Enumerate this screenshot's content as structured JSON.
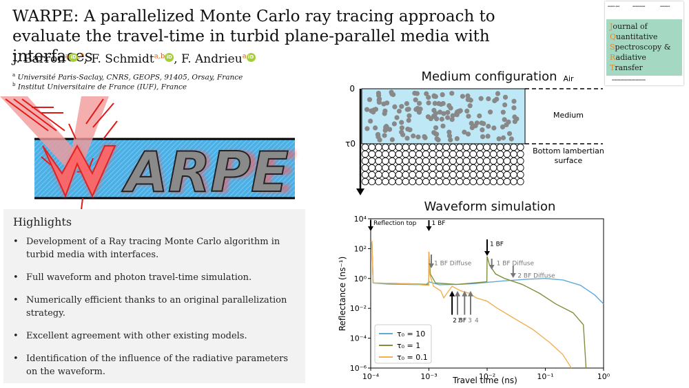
{
  "title": "WARPE: A parallelized Monte Carlo ray tracing approach to evaluate the travel-time in turbid plane-parallel media with interfaces",
  "authors": [
    {
      "name": "J. Barron",
      "aff": "a",
      "extra": ",*"
    },
    {
      "name": "F. Schmidt",
      "aff": "a,b",
      "extra": ""
    },
    {
      "name": "F. Andrieu",
      "aff": "a",
      "extra": ""
    }
  ],
  "orcid_label": "iD",
  "affiliations": [
    {
      "mark": "a",
      "text": "Université Paris-Saclay, CNRS, GEOPS, 91405, Orsay, France"
    },
    {
      "mark": "b",
      "text": "Institut Universitaire de France (IUF), France"
    }
  ],
  "journal": {
    "lines": [
      {
        "initial": "J",
        "rest": "ournal of"
      },
      {
        "initial": "Q",
        "rest": "uantitative"
      },
      {
        "initial": "S",
        "rest": "pectroscopy &"
      },
      {
        "initial": "R",
        "rest": "adiative"
      },
      {
        "initial": "T",
        "rest": "ransfer"
      }
    ]
  },
  "logo_text": "WARPE",
  "highlights": {
    "heading": "Highlights",
    "bullet": "•",
    "items": [
      "Development of a Ray tracing Monte Carlo algorithm in turbid media with interfaces.",
      "Full waveform and photon travel-time simulation.",
      "Numerically efficient thanks to an original parallelization strategy.",
      "Excellent agreement with other existing models.",
      "Identification of the influence of the radiative parameters on the waveform."
    ]
  },
  "medium": {
    "title": "Medium configuration",
    "top_label": "0",
    "bottom_label": "τ0",
    "air": "Air",
    "medium": "Medium",
    "surface_line1": "Bottom lambertian",
    "surface_line2": "surface",
    "colors": {
      "medium": "#bfe8f7",
      "particle": "#888888"
    }
  },
  "chart_data": {
    "type": "line",
    "title": "Waveform simulation",
    "xlabel": "Travel time (ns)",
    "ylabel": "Reflectance (ns⁻¹)",
    "x_scale": "log",
    "y_scale": "log",
    "xlim": [
      0.0001,
      1
    ],
    "ylim": [
      1e-06,
      10000
    ],
    "x_ticks": [
      "10⁻⁴",
      "10⁻³",
      "10⁻²",
      "10⁻¹",
      "10⁰"
    ],
    "y_ticks": [
      "10⁴",
      "10²",
      "10⁰",
      "10⁻²",
      "10⁻⁴",
      "10⁻⁶"
    ],
    "legend_position": "bottom-left",
    "series": [
      {
        "name": "τ₀ = 10",
        "color": "#5fa8d8",
        "points": [
          [
            0.0001,
            300
          ],
          [
            0.000105,
            300
          ],
          [
            0.00011,
            0.5
          ],
          [
            0.0002,
            0.42
          ],
          [
            0.0004,
            0.4
          ],
          [
            0.0009,
            0.38
          ],
          [
            0.001,
            0.6
          ],
          [
            0.0015,
            0.38
          ],
          [
            0.003,
            0.4
          ],
          [
            0.006,
            0.45
          ],
          [
            0.01,
            0.55
          ],
          [
            0.02,
            0.7
          ],
          [
            0.05,
            0.9
          ],
          [
            0.1,
            1.0
          ],
          [
            0.2,
            0.8
          ],
          [
            0.4,
            0.35
          ],
          [
            0.7,
            0.08
          ],
          [
            1,
            0.02
          ]
        ]
      },
      {
        "name": "τ₀ = 1",
        "color": "#7f8f3a",
        "points": [
          [
            0.0001,
            300
          ],
          [
            0.000105,
            300
          ],
          [
            0.00011,
            0.5
          ],
          [
            0.0004,
            0.45
          ],
          [
            0.00099,
            0.4
          ],
          [
            0.001,
            60
          ],
          [
            0.00106,
            2
          ],
          [
            0.0013,
            0.5
          ],
          [
            0.003,
            0.4
          ],
          [
            0.0099,
            0.6
          ],
          [
            0.01,
            30
          ],
          [
            0.011,
            8
          ],
          [
            0.014,
            2
          ],
          [
            0.02,
            1
          ],
          [
            0.04,
            0.4
          ],
          [
            0.08,
            0.1
          ],
          [
            0.15,
            0.02
          ],
          [
            0.3,
            0.005
          ],
          [
            0.45,
            0.0008
          ],
          [
            0.5,
            1e-06
          ]
        ]
      },
      {
        "name": "τ₀ = 0.1",
        "color": "#f0b050",
        "points": [
          [
            0.0001,
            300
          ],
          [
            0.000105,
            300
          ],
          [
            0.00011,
            0.5
          ],
          [
            0.0004,
            0.45
          ],
          [
            0.00099,
            0.35
          ],
          [
            0.001,
            60
          ],
          [
            0.00103,
            2
          ],
          [
            0.0012,
            0.3
          ],
          [
            0.0016,
            0.15
          ],
          [
            0.0018,
            0.05
          ],
          [
            0.002,
            0.09
          ],
          [
            0.0025,
            0.3
          ],
          [
            0.0035,
            0.15
          ],
          [
            0.005,
            0.1
          ],
          [
            0.0065,
            0.05
          ],
          [
            0.01,
            0.03
          ],
          [
            0.015,
            0.01
          ],
          [
            0.03,
            0.002
          ],
          [
            0.06,
            0.0004
          ],
          [
            0.12,
            5e-05
          ],
          [
            0.2,
            8e-06
          ],
          [
            0.28,
            1e-06
          ]
        ]
      }
    ],
    "annotations": [
      {
        "text": "Reflection top",
        "x": 0.0001,
        "y": 10000,
        "color": "#000000"
      },
      {
        "text": "1 BF",
        "x": 0.001,
        "y": 10000,
        "color": "#000000"
      },
      {
        "text": "1 BF Diffuse",
        "x": 0.0011,
        "y": 20,
        "color": "#777777"
      },
      {
        "text": "1 BF",
        "x": 0.01,
        "y": 400,
        "color": "#000000"
      },
      {
        "text": "1 BF Diffuse",
        "x": 0.013,
        "y": 20,
        "color": "#777777"
      },
      {
        "text": "2 BF Diffuse",
        "x": 0.03,
        "y": 3,
        "color": "#777777"
      },
      {
        "text": "2 BF",
        "x": 0.0023,
        "y": 0.003,
        "color": "#000000"
      },
      {
        "text": "2",
        "x": 0.0028,
        "y": 0.003,
        "color": "#777777"
      },
      {
        "text": "3",
        "x": 0.0042,
        "y": 0.003,
        "color": "#777777"
      },
      {
        "text": "4",
        "x": 0.0055,
        "y": 0.003,
        "color": "#777777"
      }
    ]
  }
}
